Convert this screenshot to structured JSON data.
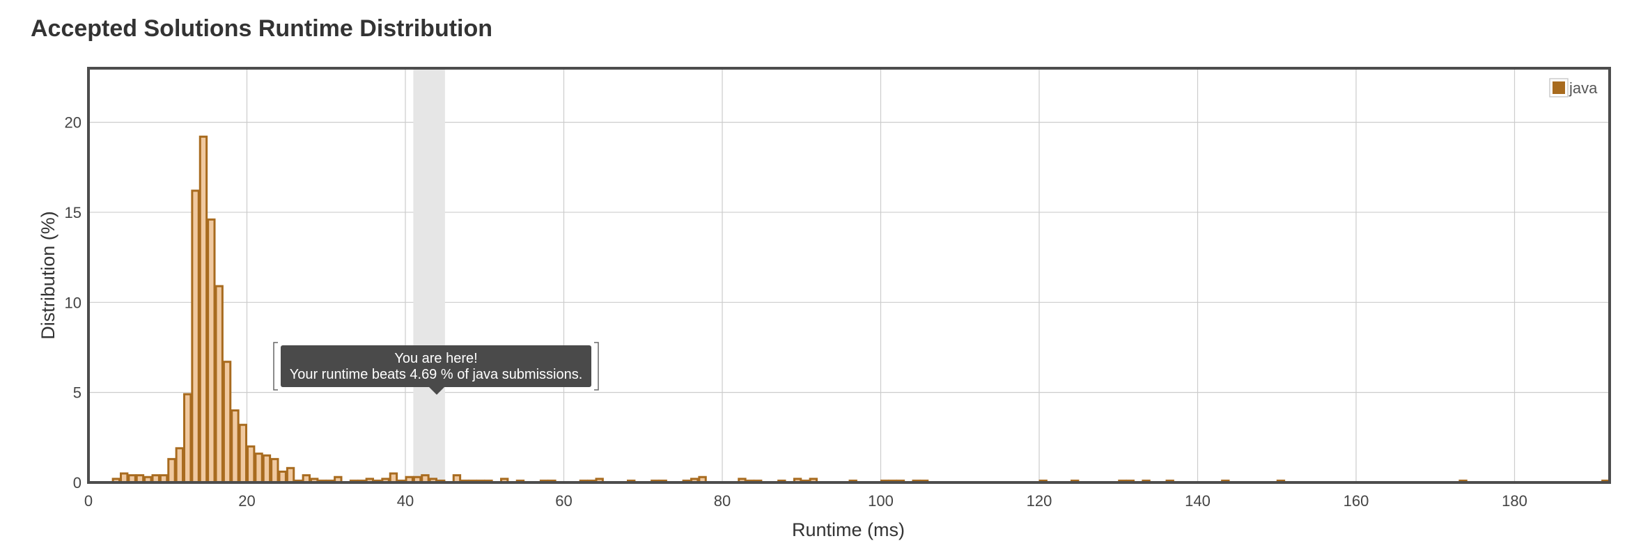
{
  "page": {
    "title": "Accepted Solutions Runtime Distribution"
  },
  "tooltip": {
    "line1": "You are here!",
    "line2": "Your runtime beats 4.69 % of java submissions."
  },
  "colors": {
    "bar_fill": "#f0c9a0",
    "bar_stroke": "#a86b1f",
    "legend_swatch": "#a86b1f",
    "highlight_band": "#e6e6e6",
    "tooltip_bg": "#4a4a4a",
    "grid": "#cccccc",
    "axis": "#4d4d4d"
  },
  "chart_data": {
    "type": "bar",
    "title": "",
    "xlabel": "Runtime (ms)",
    "ylabel": "Distribution (%)",
    "xlim": [
      0,
      192
    ],
    "ylim": [
      0,
      23
    ],
    "x_ticks": [
      0,
      20,
      40,
      60,
      80,
      100,
      120,
      140,
      160,
      180
    ],
    "y_ticks": [
      0,
      5,
      10,
      15,
      20
    ],
    "grid": true,
    "legend_position": "top-right",
    "highlight_range": [
      41,
      45
    ],
    "series": [
      {
        "name": "java",
        "x": [
          3,
          4,
          5,
          6,
          7,
          8,
          9,
          10,
          11,
          12,
          13,
          14,
          15,
          16,
          17,
          18,
          19,
          20,
          21,
          22,
          23,
          24,
          25,
          26,
          27,
          28,
          29,
          30,
          31,
          33,
          34,
          35,
          36,
          37,
          38,
          39,
          40,
          41,
          42,
          43,
          44,
          46,
          47,
          48,
          49,
          50,
          52,
          54,
          57,
          58,
          62,
          63,
          64,
          68,
          71,
          72,
          75,
          76,
          77,
          82,
          83,
          84,
          87,
          89,
          90,
          91,
          96,
          100,
          101,
          102,
          104,
          105,
          120,
          124,
          130,
          131,
          133,
          136,
          143,
          150,
          173,
          191
        ],
        "values": [
          0.2,
          0.5,
          0.4,
          0.4,
          0.3,
          0.4,
          0.4,
          1.3,
          1.9,
          4.9,
          16.2,
          19.2,
          14.6,
          10.9,
          6.7,
          4.0,
          3.2,
          2.0,
          1.6,
          1.5,
          1.3,
          0.6,
          0.8,
          0.1,
          0.4,
          0.2,
          0.1,
          0.1,
          0.3,
          0.1,
          0.1,
          0.2,
          0.1,
          0.2,
          0.5,
          0.1,
          0.3,
          0.3,
          0.4,
          0.2,
          0.1,
          0.4,
          0.1,
          0.1,
          0.1,
          0.1,
          0.2,
          0.1,
          0.1,
          0.1,
          0.1,
          0.1,
          0.2,
          0.1,
          0.1,
          0.1,
          0.1,
          0.2,
          0.3,
          0.2,
          0.1,
          0.1,
          0.1,
          0.2,
          0.1,
          0.2,
          0.1,
          0.1,
          0.1,
          0.1,
          0.1,
          0.1,
          0.1,
          0.1,
          0.1,
          0.1,
          0.1,
          0.1,
          0.1,
          0.1,
          0.1,
          0.1
        ]
      }
    ]
  }
}
